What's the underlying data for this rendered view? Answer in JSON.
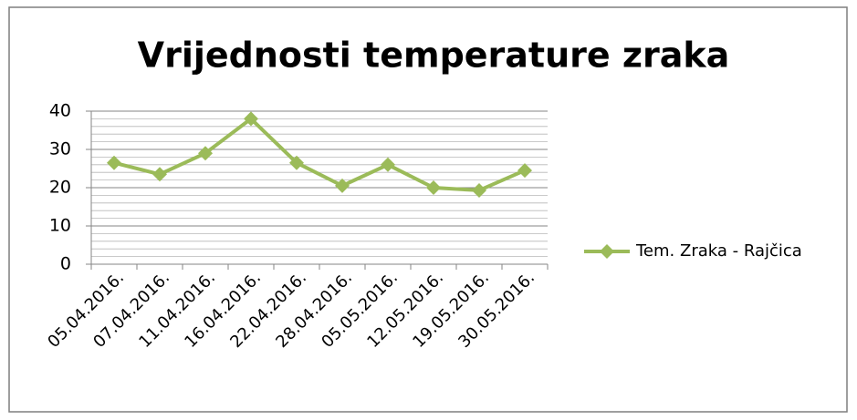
{
  "chart_data": {
    "type": "line",
    "title": "Vrijednosti temperature zraka",
    "categories": [
      "05.04.2016.",
      "07.04.2016.",
      "11.04.2016.",
      "16.04.2016.",
      "22.04.2016.",
      "28.04.2016.",
      "05.05.2016.",
      "12.05.2016.",
      "19.05.2016.",
      "30.05.2016."
    ],
    "series": [
      {
        "name": "Tem. Zraka - Rajčica",
        "color": "#9bbb59",
        "values": [
          26.5,
          23.5,
          29,
          38,
          26.5,
          20.5,
          26,
          20,
          19.3,
          24.5
        ]
      }
    ],
    "ylim": [
      0,
      40
    ],
    "yticks": [
      0,
      10,
      20,
      30,
      40
    ],
    "minor_yticks": [
      2,
      4,
      6,
      8,
      12,
      14,
      16,
      18,
      22,
      24,
      26,
      28,
      32,
      34,
      36,
      38
    ],
    "grid": true,
    "legend": "right"
  }
}
